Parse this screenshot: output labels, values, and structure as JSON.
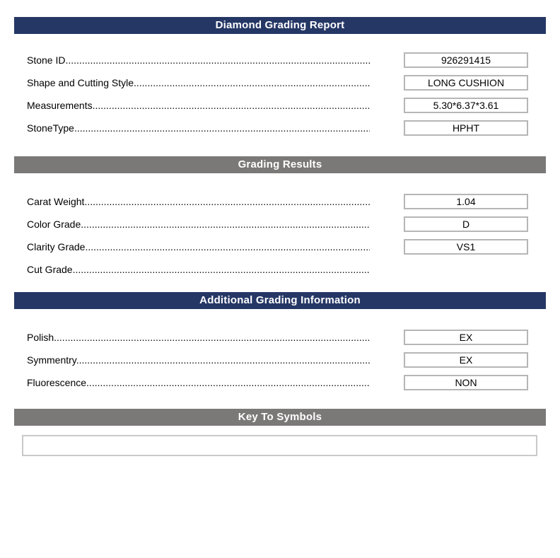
{
  "report": {
    "leader_char": ".",
    "colors": {
      "header_blue": "#253765",
      "header_gray": "#7b7878",
      "header_text": "#ffffff",
      "box_border": "#b6b6b6",
      "text": "#000000"
    },
    "sections": [
      {
        "title": "Diamond Grading Report",
        "style": "blue",
        "fields": [
          {
            "label": "Stone ID",
            "value": "926291415"
          },
          {
            "label": "Shape and Cutting Style",
            "value": "LONG CUSHION"
          },
          {
            "label": "Measurements",
            "value": "5.30*6.37*3.61"
          },
          {
            "label": "StoneType",
            "value": "HPHT"
          }
        ]
      },
      {
        "title": "Grading Results",
        "style": "gray",
        "fields": [
          {
            "label": "Carat Weight",
            "value": "1.04"
          },
          {
            "label": "Color Grade",
            "value": "D"
          },
          {
            "label": "Clarity Grade",
            "value": "VS1"
          },
          {
            "label": "Cut Grade",
            "value": ""
          }
        ]
      },
      {
        "title": "Additional Grading Information",
        "style": "blue",
        "fields": [
          {
            "label": "Polish",
            "value": "EX"
          },
          {
            "label": "Symmentry",
            "value": "EX"
          },
          {
            "label": "Fluorescence",
            "value": "NON"
          }
        ]
      },
      {
        "title": "Key To Symbols",
        "style": "gray",
        "fields": [],
        "symbols_box_content": ""
      }
    ]
  }
}
